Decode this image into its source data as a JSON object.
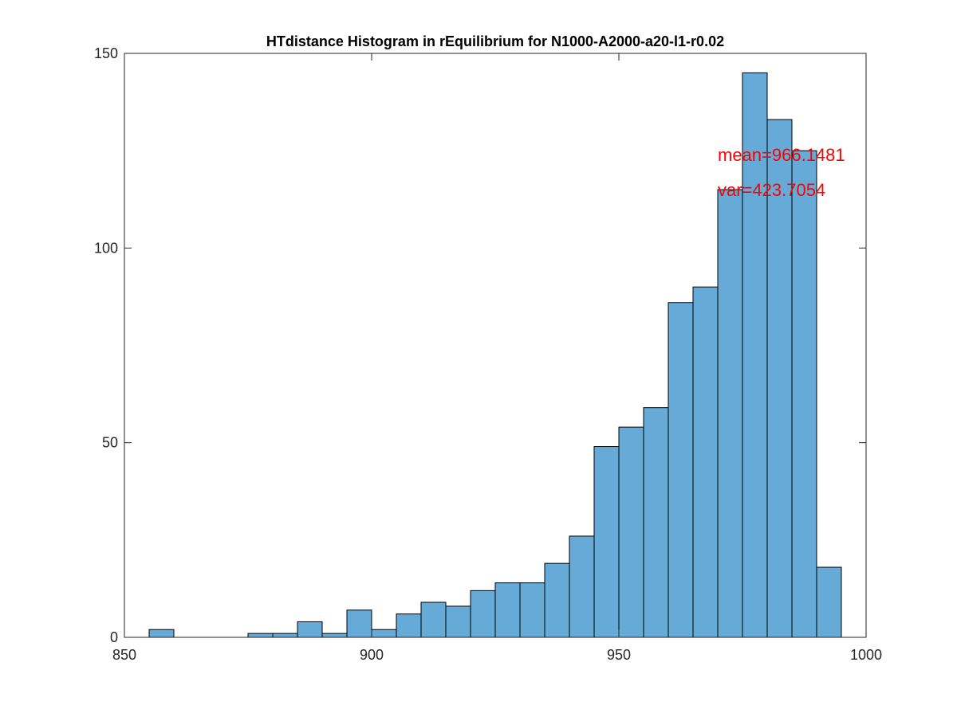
{
  "chart_data": {
    "type": "bar",
    "title": "HTdistance Histogram in rEquilibrium for N1000-A2000-a20-l1-r0.02",
    "xlabel": "",
    "ylabel": "",
    "xlim": [
      850,
      1000
    ],
    "ylim": [
      0,
      150
    ],
    "x_ticks": [
      850,
      900,
      950,
      1000
    ],
    "y_ticks": [
      0,
      50,
      100,
      150
    ],
    "grid": false,
    "bin_width": 5,
    "bins": [
      {
        "x0": 855,
        "x1": 860,
        "count": 2
      },
      {
        "x0": 860,
        "x1": 865,
        "count": 0
      },
      {
        "x0": 865,
        "x1": 870,
        "count": 0
      },
      {
        "x0": 870,
        "x1": 875,
        "count": 0
      },
      {
        "x0": 875,
        "x1": 880,
        "count": 1
      },
      {
        "x0": 880,
        "x1": 885,
        "count": 1
      },
      {
        "x0": 885,
        "x1": 890,
        "count": 4
      },
      {
        "x0": 890,
        "x1": 895,
        "count": 1
      },
      {
        "x0": 895,
        "x1": 900,
        "count": 7
      },
      {
        "x0": 900,
        "x1": 905,
        "count": 2
      },
      {
        "x0": 905,
        "x1": 910,
        "count": 6
      },
      {
        "x0": 910,
        "x1": 915,
        "count": 9
      },
      {
        "x0": 915,
        "x1": 920,
        "count": 8
      },
      {
        "x0": 920,
        "x1": 925,
        "count": 12
      },
      {
        "x0": 925,
        "x1": 930,
        "count": 14
      },
      {
        "x0": 930,
        "x1": 935,
        "count": 14
      },
      {
        "x0": 935,
        "x1": 940,
        "count": 19
      },
      {
        "x0": 940,
        "x1": 945,
        "count": 26
      },
      {
        "x0": 945,
        "x1": 950,
        "count": 49
      },
      {
        "x0": 950,
        "x1": 955,
        "count": 54
      },
      {
        "x0": 955,
        "x1": 960,
        "count": 59
      },
      {
        "x0": 960,
        "x1": 965,
        "count": 86
      },
      {
        "x0": 965,
        "x1": 970,
        "count": 90
      },
      {
        "x0": 970,
        "x1": 975,
        "count": 115
      },
      {
        "x0": 975,
        "x1": 980,
        "count": 145
      },
      {
        "x0": 980,
        "x1": 985,
        "count": 133
      },
      {
        "x0": 985,
        "x1": 990,
        "count": 125
      },
      {
        "x0": 990,
        "x1": 995,
        "count": 18
      }
    ],
    "annotations": [
      {
        "text": "mean=966.1481",
        "x": 970,
        "y": 124
      },
      {
        "text": "var=423.7054",
        "x": 970,
        "y": 115
      }
    ],
    "colors": {
      "bar_fill": "#66aad8",
      "bar_edge": "#000000",
      "annotation": "#ff0000",
      "axis": "#262626"
    }
  }
}
